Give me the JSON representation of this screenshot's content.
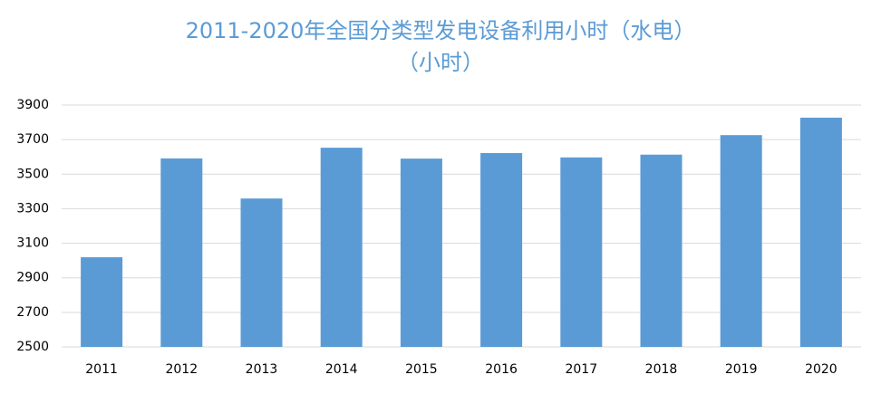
{
  "chart_data": {
    "type": "bar",
    "title": "2011-2020年全国分类型发电设备利用小时（水电）",
    "subtitle": "（小时）",
    "categories": [
      "2011",
      "2012",
      "2013",
      "2014",
      "2015",
      "2016",
      "2017",
      "2018",
      "2019",
      "2020"
    ],
    "values": [
      3019,
      3591,
      3359,
      3653,
      3590,
      3622,
      3597,
      3613,
      3726,
      3827
    ],
    "color": "#5b9bd5",
    "ylim": [
      2500,
      3900
    ],
    "yticks": [
      2500,
      2700,
      2900,
      3100,
      3300,
      3500,
      3700,
      3900
    ],
    "grid": true
  }
}
